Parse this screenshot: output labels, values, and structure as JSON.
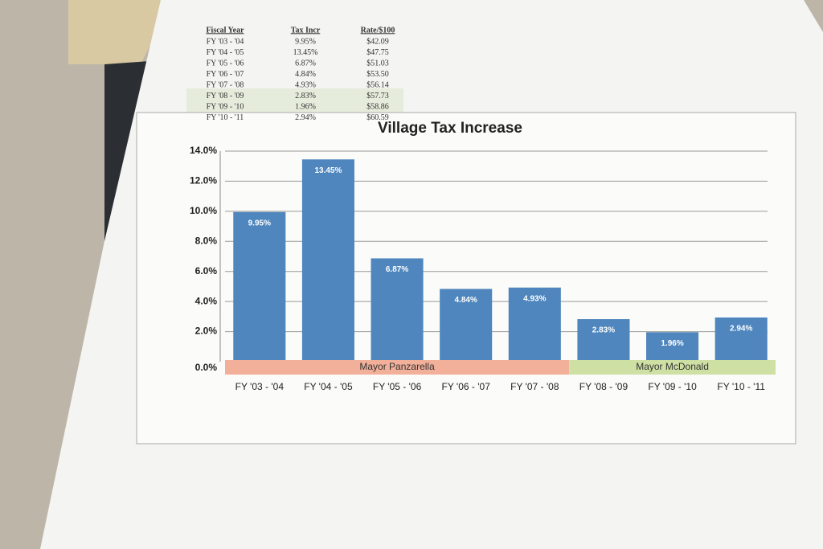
{
  "table": {
    "headers": [
      "Fiscal Year",
      "Tax Incr",
      "Rate/$100"
    ],
    "rows": [
      [
        "FY '03 - '04",
        "9.95%",
        "$42.09"
      ],
      [
        "FY '04 - '05",
        "13.45%",
        "$47.75"
      ],
      [
        "FY '05 - '06",
        "6.87%",
        "$51.03"
      ],
      [
        "FY '06 - '07",
        "4.84%",
        "$53.50"
      ],
      [
        "FY '07 - '08",
        "4.93%",
        "$56.14"
      ],
      [
        "FY '08 - '09",
        "2.83%",
        "$57.73"
      ],
      [
        "FY '09 - '10",
        "1.96%",
        "$58.86"
      ],
      [
        "FY '10 - '11",
        "2.94%",
        "$60.59"
      ]
    ]
  },
  "chart_data": {
    "type": "bar",
    "title": "Village Tax Increase",
    "categories": [
      "FY '03 - '04",
      "FY '04 - '05",
      "FY '05 - '06",
      "FY '06 - '07",
      "FY '07 - '08",
      "FY '08 - '09",
      "FY '09 - '10",
      "FY '10 - '11"
    ],
    "values": [
      9.95,
      13.45,
      6.87,
      4.84,
      4.93,
      2.83,
      1.96,
      2.94
    ],
    "value_labels": [
      "9.95%",
      "13.45%",
      "6.87%",
      "4.84%",
      "4.93%",
      "2.83%",
      "1.96%",
      "2.94%"
    ],
    "color": "#4f86bd",
    "ylim": [
      0,
      14
    ],
    "yticks": [
      {
        "value": 0,
        "label": "0.0%"
      },
      {
        "value": 2,
        "label": "2.0%"
      },
      {
        "value": 4,
        "label": "4.0%"
      },
      {
        "value": 6,
        "label": "6.0%"
      },
      {
        "value": 8,
        "label": "8.0%"
      },
      {
        "value": 10,
        "label": "10.0%"
      },
      {
        "value": 12,
        "label": "12.0%"
      },
      {
        "value": 14,
        "label": "14.0%"
      }
    ],
    "grid": true,
    "annotations": [
      {
        "text": "Mayor Panzarella",
        "from": "FY '03 - '04",
        "to": "FY '07 - '08",
        "color": "#f2b09a"
      },
      {
        "text": "Mayor McDonald",
        "from": "FY '08 - '09",
        "to": "FY '10 - '11",
        "color": "#cfe0a4"
      }
    ]
  }
}
